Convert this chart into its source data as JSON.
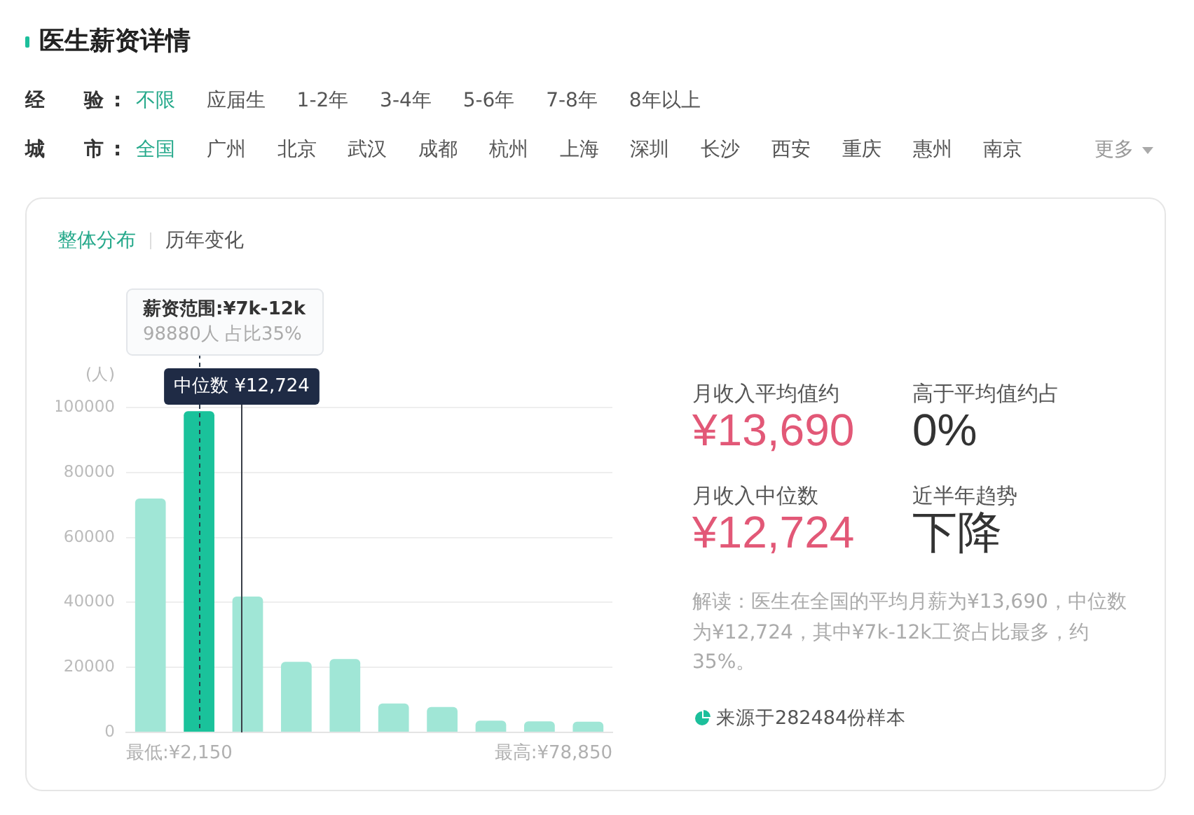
{
  "chart_data": [
    {
      "type": "other",
      "title": "医生薪资详情",
      "ylabel": "经　验:",
      "categories": [
        "不限",
        "应届生",
        "1-2年",
        "3-4年",
        "5-6年",
        "7-8年",
        "8年以上"
      ],
      "colors": [
        "#26a98b",
        "#555555",
        "#555555",
        "#555555",
        "#555555",
        "#555555",
        "#555555"
      ]
    },
    {
      "type": "other",
      "ylabel": "城　市:",
      "xlabel": "更多",
      "categories": [
        "全国",
        "广州",
        "北京",
        "武汉",
        "成都",
        "杭州",
        "上海",
        "深圳",
        "长沙",
        "西安",
        "重庆",
        "惠州",
        "南京"
      ],
      "colors": [
        "#26a98b",
        "#555555",
        "#555555",
        "#555555",
        "#555555",
        "#555555",
        "#555555",
        "#555555",
        "#555555",
        "#555555",
        "#555555",
        "#555555",
        "#555555"
      ]
    },
    {
      "type": "other",
      "categories": [
        "整体分布",
        "历年变化"
      ],
      "colors": [
        "#26a98b",
        "#555555"
      ]
    },
    {
      "type": "bar",
      "ylabel": "(人)",
      "categories": [
        null,
        null,
        null,
        null,
        null,
        null,
        null,
        null,
        null,
        null
      ],
      "values": [
        72000,
        98880,
        41800,
        21700,
        22600,
        8900,
        7800,
        3600,
        3400,
        3300
      ],
      "colors": [
        "#a0e6d6",
        "#1ac29b",
        "#a0e6d6",
        "#a0e6d6",
        "#a0e6d6",
        "#a0e6d6",
        "#a0e6d6",
        "#a0e6d6",
        "#a0e6d6",
        "#a0e6d6"
      ],
      "ylim": [
        0,
        100000
      ],
      "yticks": [
        0,
        20000,
        40000,
        60000,
        80000,
        100000
      ],
      "grid": "y",
      "annotations": [
        "薪资范围:¥7k-12k",
        "98880人 占比35%",
        "中位数 ¥12,724",
        "最低:¥2,150",
        "最高:¥78,850"
      ]
    },
    {
      "type": "other",
      "categories": [
        "月收入平均值约",
        "高于平均值约占",
        "月收入中位数",
        "近半年趋势"
      ],
      "value_labels": [
        "¥13,690",
        "0%",
        "¥12,724",
        "下降"
      ],
      "colors": [
        "#e25877",
        "#333333",
        "#e25877",
        "#333333"
      ],
      "annotations": [
        "解读：医生在全国的平均月薪为¥13,690，中位数为¥12,724，其中¥7k-12k工资占比最多，约35%。",
        "来源于282484份样本"
      ]
    }
  ]
}
